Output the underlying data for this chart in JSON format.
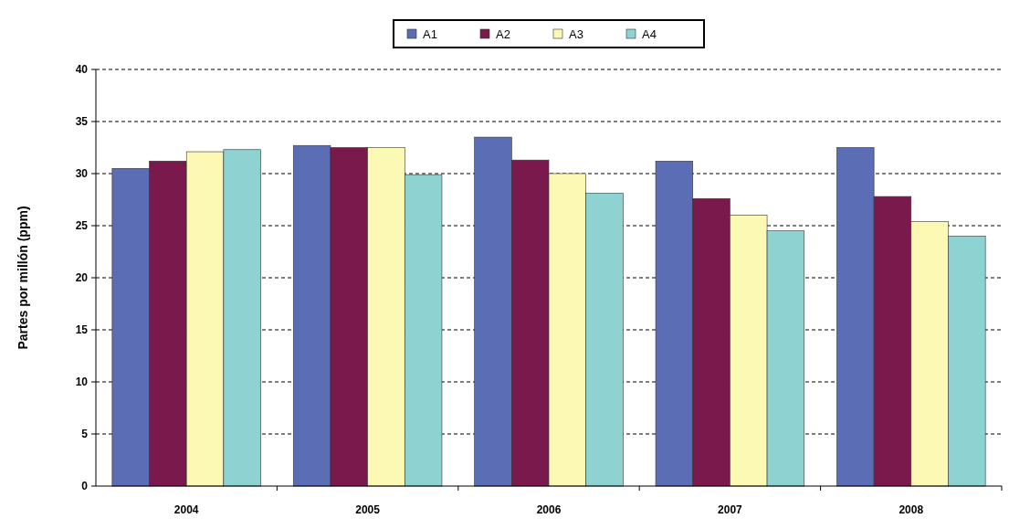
{
  "chart_data": {
    "type": "bar",
    "ylabel": "Partes por millón (ppm)",
    "categories": [
      "2004",
      "2005",
      "2006",
      "2007",
      "2008"
    ],
    "series": [
      {
        "name": "A1",
        "color": "#5b6db5",
        "values": [
          30.5,
          32.7,
          33.5,
          31.2,
          32.5
        ]
      },
      {
        "name": "A2",
        "color": "#7a1a4c",
        "values": [
          31.2,
          32.5,
          31.3,
          27.6,
          27.8
        ]
      },
      {
        "name": "A3",
        "color": "#fcf9b4",
        "values": [
          32.1,
          32.5,
          30.0,
          26.0,
          25.4
        ]
      },
      {
        "name": "A4",
        "color": "#8ed2d2",
        "values": [
          32.3,
          29.9,
          28.1,
          24.5,
          24.0
        ]
      }
    ],
    "ylim": [
      0,
      40
    ],
    "yticks": [
      0,
      5,
      10,
      15,
      20,
      25,
      30,
      35,
      40
    ],
    "grid": "y",
    "legend": "top"
  }
}
